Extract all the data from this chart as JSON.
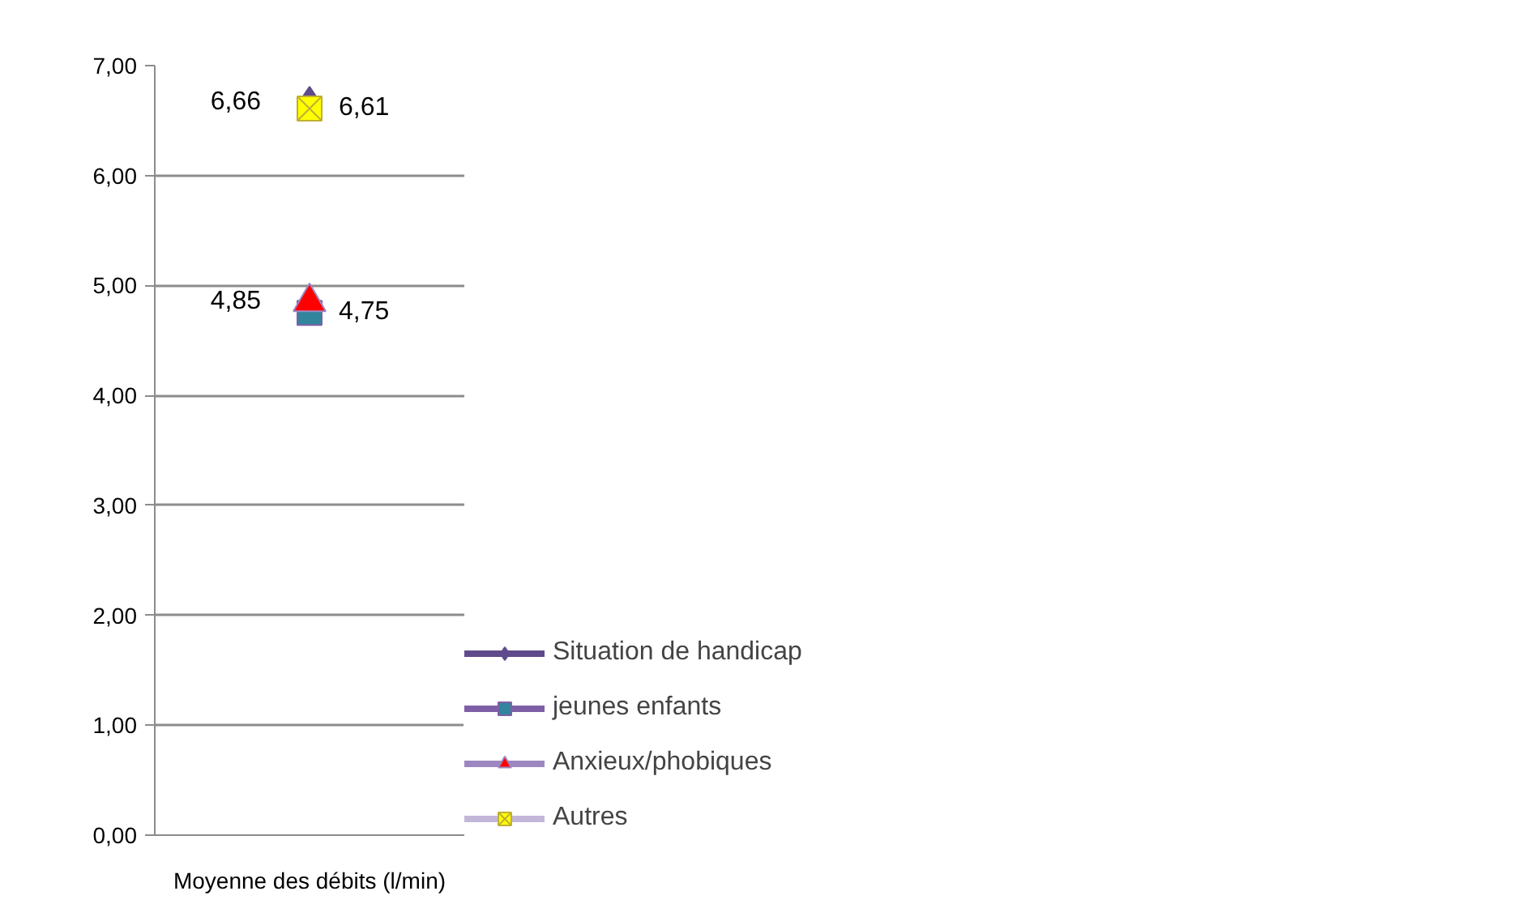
{
  "chart_data": {
    "type": "line",
    "categories": [
      "Moyenne des débits (l/min)"
    ],
    "series": [
      {
        "name": "Situation de handicap",
        "color": "#5f4b8b",
        "colors": [
          "#5f4b8b"
        ],
        "marker": "diamond",
        "values": [
          6.66
        ],
        "value_labels": [
          "6,66"
        ]
      },
      {
        "name": "jeunes enfants",
        "color": "#7e5fa6",
        "colors": [
          "#31859c"
        ],
        "marker": "square",
        "values": [
          4.75
        ],
        "value_labels": [
          "4,75"
        ]
      },
      {
        "name": "Anxieux/phobiques",
        "color": "#9d87c0",
        "colors": [
          "#ff0000"
        ],
        "marker": "triangle",
        "values": [
          4.85
        ],
        "value_labels": [
          "4,85"
        ]
      },
      {
        "name": "Autres",
        "color": "#c3b7d9",
        "colors": [
          "#ffff00"
        ],
        "marker": "cross",
        "values": [
          6.61
        ],
        "value_labels": [
          "6,61"
        ]
      }
    ],
    "ylim": [
      0,
      7
    ],
    "yticks": [
      {
        "value": 0,
        "label": "0,00"
      },
      {
        "value": 1,
        "label": "1,00"
      },
      {
        "value": 2,
        "label": "2,00"
      },
      {
        "value": 3,
        "label": "3,00"
      },
      {
        "value": 4,
        "label": "4,00"
      },
      {
        "value": 5,
        "label": "5,00"
      },
      {
        "value": 6,
        "label": "6,00"
      },
      {
        "value": 7,
        "label": "7,00"
      }
    ],
    "grid": "y",
    "legend": "right"
  }
}
